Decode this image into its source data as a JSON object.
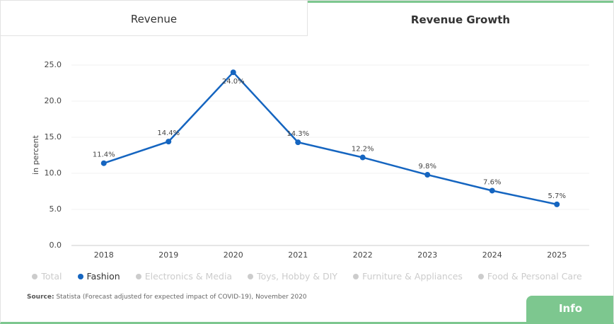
{
  "tabs": [
    "Revenue",
    "Revenue Growth"
  ],
  "chart_data": {
    "type": "line",
    "y_label": "in percent",
    "categories": [
      "2018",
      "2019",
      "2020",
      "2021",
      "2022",
      "2023",
      "2024",
      "2025"
    ],
    "series": [
      {
        "name": "Fashion",
        "color": "#1565c0",
        "values": [
          11.4,
          14.4,
          24.0,
          14.3,
          12.2,
          9.8,
          7.6,
          5.7
        ],
        "value_labels": [
          "11.4%",
          "14.4%",
          "24.0%",
          "14.3%",
          "12.2%",
          "9.8%",
          "7.6%",
          "5.7%"
        ]
      }
    ],
    "legend": [
      {
        "name": "Total",
        "active": false
      },
      {
        "name": "Fashion",
        "active": true
      },
      {
        "name": "Electronics & Media",
        "active": false
      },
      {
        "name": "Toys, Hobby & DIY",
        "active": false
      },
      {
        "name": "Furniture & Appliances",
        "active": false
      },
      {
        "name": "Food & Personal Care",
        "active": false
      }
    ],
    "ylim": [
      0,
      25
    ],
    "yticks": [
      {
        "value": 0,
        "label": "0.0"
      },
      {
        "value": 5,
        "label": "5.0"
      },
      {
        "value": 10,
        "label": "10.0"
      },
      {
        "value": 15,
        "label": "15.0"
      },
      {
        "value": 20,
        "label": "20.0"
      },
      {
        "value": 25,
        "label": "25.0"
      }
    ],
    "grid": true
  },
  "source": {
    "label": "Source:",
    "text": "Statista (Forecast adjusted for expected impact of COVID-19), November 2020"
  },
  "button": "Info"
}
